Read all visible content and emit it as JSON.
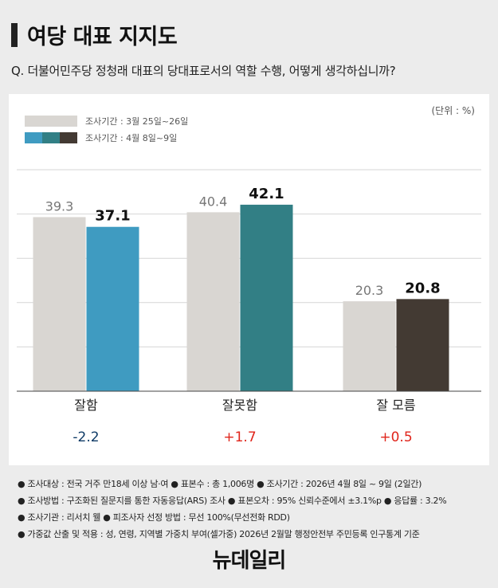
{
  "header": {
    "title": "여당 대표 지지도",
    "question": "Q. 더불어민주당 정청래 대표의 당대표로서의 역할 수행, 어떻게 생각하십니까?"
  },
  "unit_label": "(단위 : %)",
  "colors": {
    "period1": "#d9d6d2",
    "bar_jal": "#3f9bc1",
    "bar_jalmot": "#327f85",
    "bar_moreum": "#433a33",
    "negative_change": "#0e3a66",
    "positive_change": "#e0251b"
  },
  "chart_data": {
    "type": "bar",
    "categories": [
      "잘함",
      "잘못함",
      "잘 모름"
    ],
    "series": [
      {
        "name": "조사기간 : 3월 25일~26일",
        "values": [
          39.3,
          40.4,
          20.3
        ],
        "value_labels": [
          "39.3",
          "40.4",
          "20.3"
        ]
      },
      {
        "name": "조사기간 : 4월 8일~9일",
        "values": [
          37.1,
          42.1,
          20.8
        ],
        "value_labels": [
          "37.1",
          "42.1",
          "20.8"
        ]
      }
    ],
    "changes": [
      "-2.2",
      "+1.7",
      "+0.5"
    ],
    "ylim": [
      0,
      50
    ],
    "grid": true
  },
  "notes": [
    "● 조사대상 : 전국 거주 만18세 이상 남·여  ● 표본수 : 총 1,006명  ● 조사기간 : 2026년 4월 8일 ~ 9일 (2일간)",
    "● 조사방법 : 구조화된 질문지를 통한 자동응답(ARS) 조사  ● 표본오차 : 95% 신뢰수준에서 ±3.1%p  ● 응답률 : 3.2%",
    "● 조사기관 : 리서치 웰  ● 피조사자 선정 방법 : 무선 100%(무선전화 RDD)",
    "● 가중값 산출 및 적용 : 성, 연령, 지역별 가중치 부여(셀가중) 2026년 2월말 행정안전부 주민등록 인구통계 기준"
  ],
  "logo": "뉴데일리"
}
